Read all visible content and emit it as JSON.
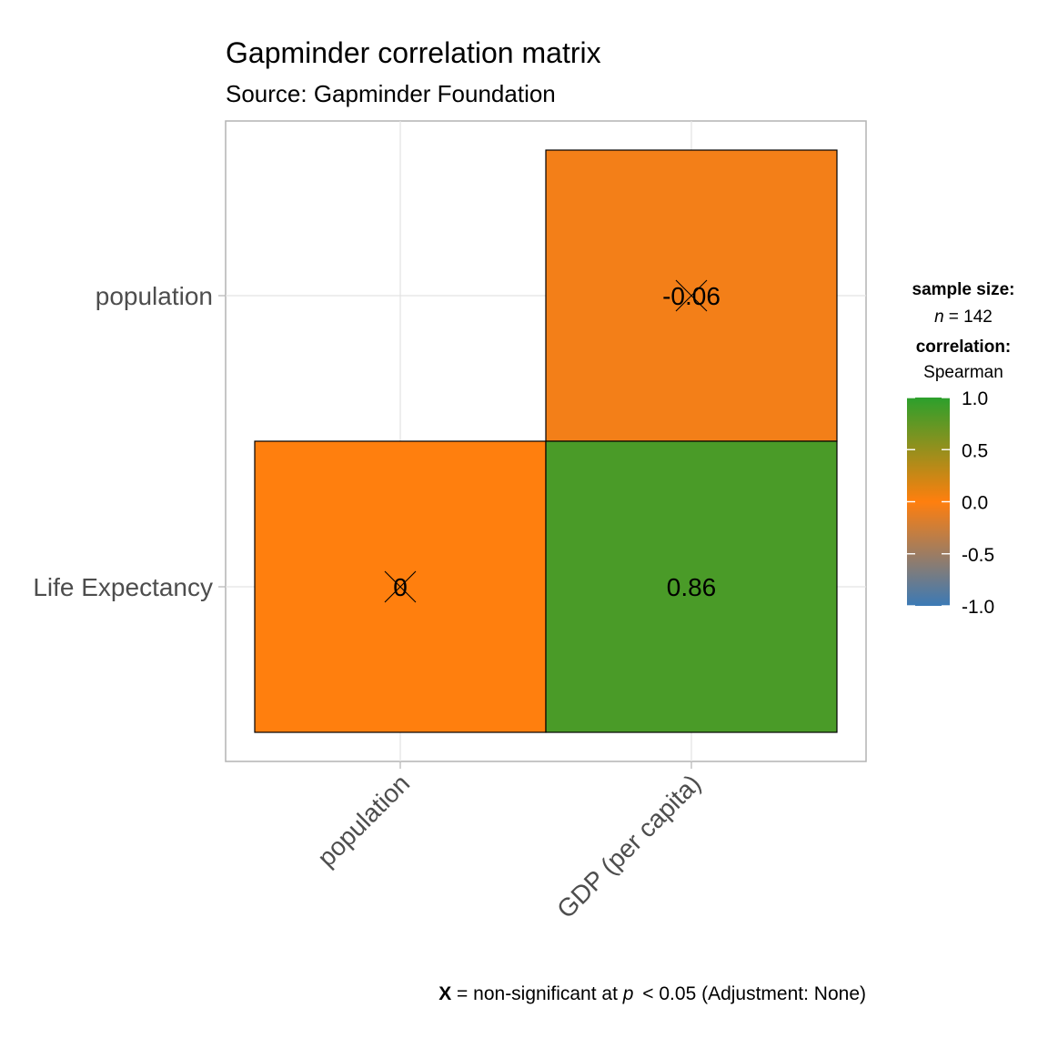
{
  "chart_data": {
    "type": "heatmap",
    "title": "Gapminder correlation matrix",
    "subtitle": "Source: Gapminder Foundation",
    "x_categories": [
      "population",
      "GDP (per capita)"
    ],
    "y_categories": [
      "population",
      "Life Expectancy"
    ],
    "cells": [
      {
        "x": "GDP (per capita)",
        "y": "population",
        "value": -0.06,
        "label": "-0.06",
        "significant": false
      },
      {
        "x": "population",
        "y": "Life Expectancy",
        "value": 0,
        "label": "0",
        "significant": false
      },
      {
        "x": "GDP (per capita)",
        "y": "Life Expectancy",
        "value": 0.86,
        "label": "0.86",
        "significant": true
      }
    ],
    "legend": {
      "sample_size_title": "sample size:",
      "sample_size_n": "n",
      "sample_size_value": "= 142",
      "correlation_title": "correlation:",
      "correlation_method": "Spearman",
      "range": [
        -1.0,
        1.0
      ],
      "ticks": [
        1.0,
        0.5,
        0.0,
        -0.5,
        -1.0
      ],
      "tick_labels": [
        "1.0",
        "0.5",
        "0.0",
        "-0.5",
        "-1.0"
      ],
      "colors": {
        "low": "#3B7AB6",
        "mid": "#FF7F0E",
        "high": "#2CA02C"
      }
    },
    "caption": {
      "symbol": "X",
      "text_before_p": " = non-significant at ",
      "p": "p",
      "text_after_p": " < 0.05 (Adjustment: None)"
    },
    "grid": true
  }
}
